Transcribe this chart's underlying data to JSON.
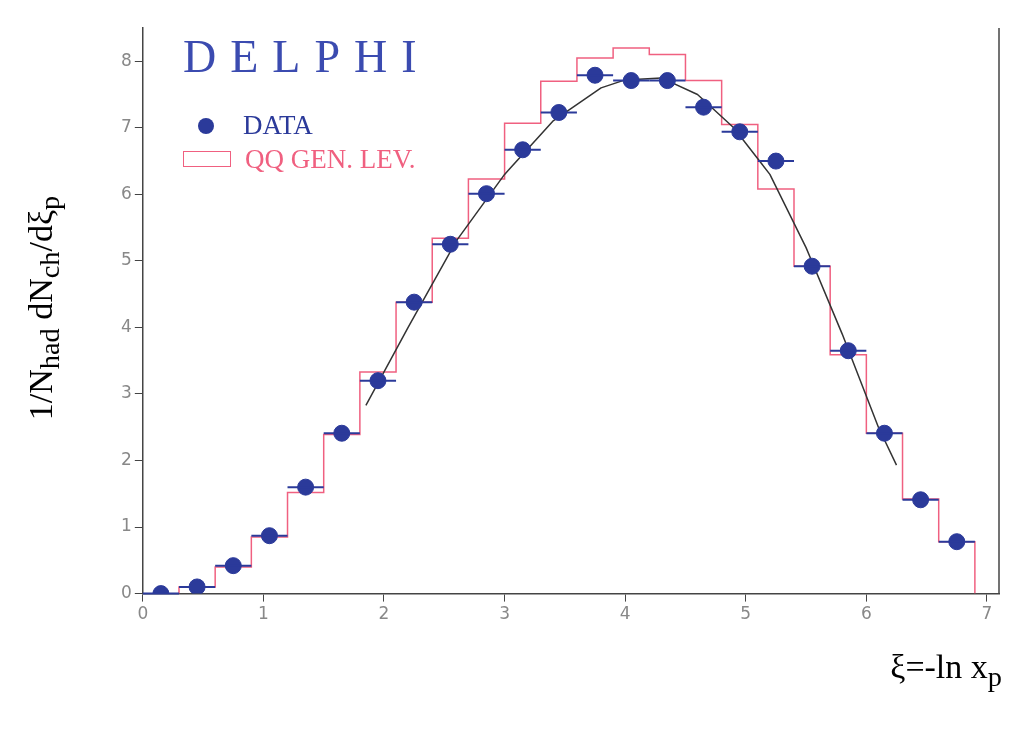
{
  "chart_data": {
    "type": "scatter",
    "xlabel": "ξ=-ln x$_{p}$",
    "ylabel": "1/N$_{had}$ dN$_{ch}$/dξ$_{p}$",
    "annotations": [
      "DELPHI"
    ],
    "xlim": [
      0,
      7.1
    ],
    "xticks": [
      0,
      1,
      2,
      3,
      4,
      5,
      6,
      7
    ],
    "ylim": [
      0,
      8.5
    ],
    "yticks": [
      0,
      1,
      2,
      3,
      4,
      5,
      6,
      7,
      8
    ],
    "grid": false,
    "legend": "top left",
    "marker": "circle",
    "series": [
      {
        "name": "QQ GEN. LEV.",
        "type": "histogram",
        "color": "#f06080",
        "bins": [
          0.3,
          0.6,
          0.9,
          1.2,
          1.5,
          1.8,
          2.1,
          2.4,
          2.7,
          3.0,
          3.3,
          3.6,
          3.9,
          4.2,
          4.5,
          4.8,
          5.1,
          5.4,
          5.7,
          6.0,
          6.3,
          6.6,
          6.9
        ],
        "values": [
          0.1,
          0.4,
          0.85,
          1.52,
          2.39,
          3.33,
          4.38,
          5.34,
          6.23,
          7.07,
          7.7,
          8.05,
          8.2,
          8.1,
          7.71,
          7.05,
          6.08,
          4.92,
          3.59,
          2.41,
          1.42,
          0.78
        ]
      },
      {
        "type": "line",
        "color": "#333333",
        "marker": "none",
        "x": [
          1.85,
          2.2,
          2.6,
          3.0,
          3.4,
          3.8,
          4.0,
          4.3,
          4.6,
          4.9,
          5.2,
          5.5,
          5.8,
          6.1,
          6.25
        ],
        "values": [
          2.83,
          4.0,
          5.3,
          6.3,
          7.1,
          7.6,
          7.72,
          7.75,
          7.5,
          7.0,
          6.3,
          5.2,
          3.9,
          2.5,
          1.93
        ]
      },
      {
        "name": "DATA",
        "type": "scatter",
        "color": "#2b3a9a",
        "x": [
          0.15,
          0.45,
          0.75,
          1.05,
          1.35,
          1.65,
          1.95,
          2.25,
          2.55,
          2.85,
          3.15,
          3.45,
          3.75,
          4.05,
          4.35,
          4.65,
          4.95,
          5.25,
          5.55,
          5.85,
          6.15,
          6.45,
          6.75
        ],
        "values": [
          0.0,
          0.1,
          0.42,
          0.87,
          1.6,
          2.41,
          3.2,
          4.38,
          5.25,
          6.01,
          6.67,
          7.23,
          7.79,
          7.71,
          7.71,
          7.31,
          6.94,
          6.5,
          4.92,
          3.65,
          2.41,
          1.41,
          0.78
        ],
        "xerrors": [
          0.15,
          0.15,
          0.15,
          0.15,
          0.15,
          0.15,
          0.15,
          0.15,
          0.15,
          0.15,
          0.15,
          0.15,
          0.15,
          0.15,
          0.15,
          0.15,
          0.15,
          0.15,
          0.15,
          0.15,
          0.15,
          0.15,
          0.15
        ]
      }
    ]
  }
}
